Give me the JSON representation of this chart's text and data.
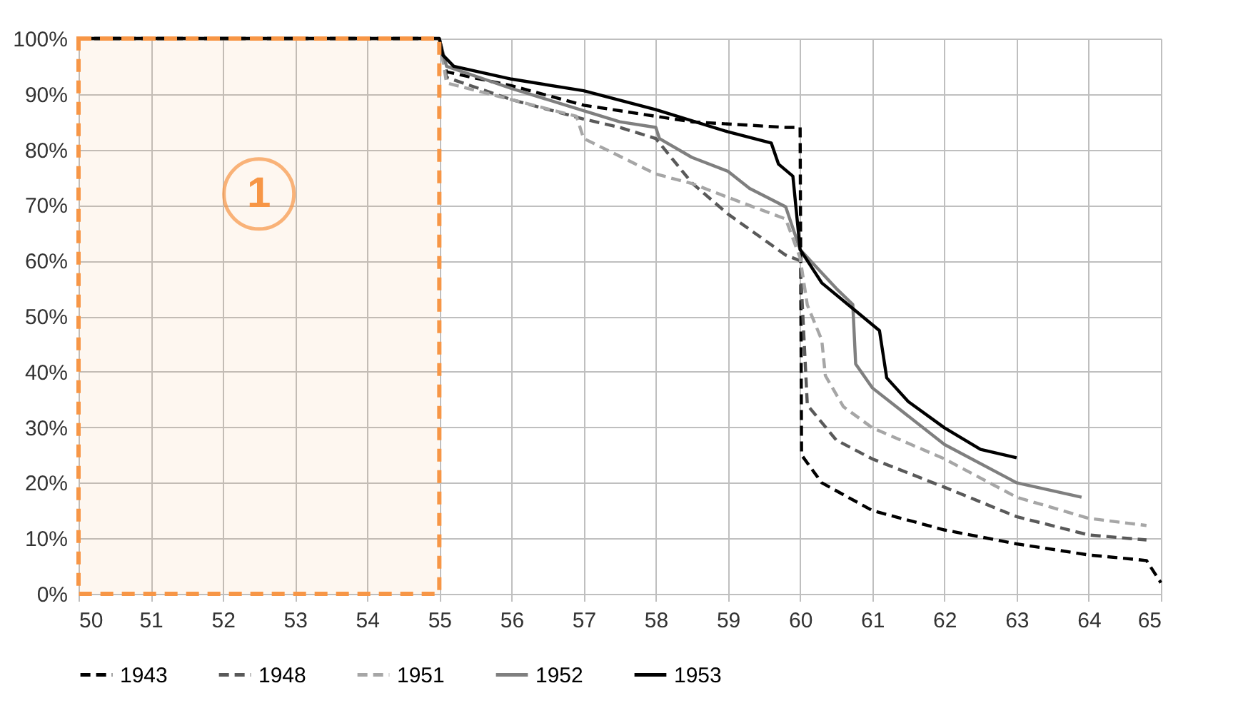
{
  "chart_data": {
    "type": "line",
    "xlim": [
      50,
      65
    ],
    "xticks": [
      50,
      51,
      52,
      53,
      54,
      55,
      56,
      57,
      58,
      59,
      60,
      61,
      62,
      63,
      64,
      65
    ],
    "ylim": [
      0,
      100
    ],
    "yticks": [
      {
        "value": 0,
        "label": "0%"
      },
      {
        "value": 10,
        "label": "10%"
      },
      {
        "value": 20,
        "label": "20%"
      },
      {
        "value": 30,
        "label": "30%"
      },
      {
        "value": 40,
        "label": "40%"
      },
      {
        "value": 50,
        "label": "50%"
      },
      {
        "value": 60,
        "label": "60%"
      },
      {
        "value": 70,
        "label": "70%"
      },
      {
        "value": 80,
        "label": "80%"
      },
      {
        "value": 90,
        "label": "90%"
      },
      {
        "value": 100,
        "label": "100%"
      }
    ],
    "grid": true,
    "legend": "bottom",
    "marker": "none",
    "bands": [
      {
        "axis": "x",
        "from": 50,
        "to": 55,
        "label": "1",
        "color": "#f79646"
      }
    ],
    "series": [
      {
        "name": "1943",
        "color": "#000000",
        "line_style": "dashed",
        "x": [
          50,
          55,
          55.1,
          56,
          57,
          58,
          58.5,
          59.8,
          60,
          60.02,
          60.3,
          61,
          62,
          63,
          64,
          64.8,
          65
        ],
        "values": [
          100,
          100,
          94,
          91.5,
          88,
          86,
          85,
          84,
          84,
          25,
          20,
          15,
          11.5,
          9,
          7,
          6,
          2
        ]
      },
      {
        "name": "1948",
        "color": "#595959",
        "line_style": "dashed",
        "x": [
          50,
          55,
          55.1,
          56,
          57,
          57.5,
          58,
          58.5,
          59,
          59.8,
          60,
          60.1,
          60.5,
          61,
          62,
          63,
          64,
          64.8
        ],
        "values": [
          100,
          100,
          93,
          89,
          85.5,
          84,
          82,
          74,
          68.4,
          61,
          60,
          34,
          27.7,
          24.3,
          19.2,
          13.9,
          10.6,
          9.7
        ]
      },
      {
        "name": "1951",
        "color": "#a6a6a6",
        "line_style": "dashed",
        "x": [
          50,
          55,
          55.1,
          56,
          56.9,
          57,
          58,
          58.5,
          59,
          59.8,
          60,
          60.1,
          60.3,
          60.35,
          60.6,
          61,
          62,
          63,
          64,
          64.8
        ],
        "values": [
          100,
          100,
          92,
          89,
          86,
          82,
          75.6,
          73.9,
          71.4,
          67.5,
          60.5,
          52,
          45.7,
          39.3,
          33.7,
          29.9,
          24.3,
          17.4,
          13.6,
          12.3
        ]
      },
      {
        "name": "1952",
        "color": "#7f7f7f",
        "line_style": "solid",
        "x": [
          50,
          55,
          55.1,
          56,
          57,
          57.5,
          58,
          58.05,
          58.5,
          59,
          59.3,
          59.8,
          60,
          60.5,
          60.73,
          60.77,
          61,
          62,
          63,
          63.9
        ],
        "values": [
          100,
          100,
          95,
          91,
          87,
          85,
          84,
          82,
          78.6,
          76.1,
          73,
          69.7,
          62,
          55,
          52.1,
          41.4,
          37.1,
          26.9,
          20,
          17.4
        ]
      },
      {
        "name": "1953",
        "color": "#000000",
        "line_style": "solid",
        "x": [
          50,
          55,
          55.05,
          55.2,
          56,
          57,
          58,
          59,
          59.6,
          59.7,
          59.9,
          60,
          60.3,
          60.7,
          61.1,
          61.2,
          61.5,
          62,
          62.5,
          63
        ],
        "values": [
          100,
          100,
          97,
          95,
          92.7,
          90.6,
          87.2,
          83.2,
          81.2,
          77.4,
          75.2,
          62,
          56,
          51.7,
          47.4,
          38.9,
          34.6,
          29.9,
          26,
          24.5
        ]
      }
    ]
  }
}
